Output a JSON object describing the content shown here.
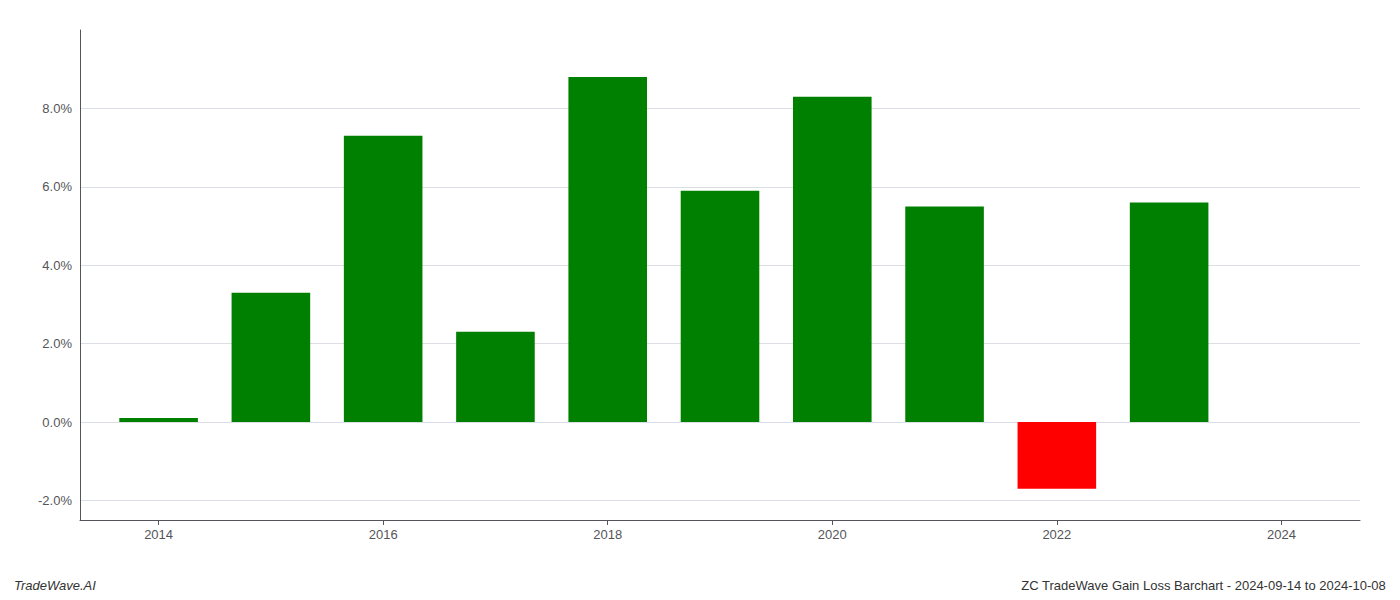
{
  "chart_data": {
    "type": "bar",
    "x": [
      2014,
      2015,
      2016,
      2017,
      2018,
      2019,
      2020,
      2021,
      2022,
      2023
    ],
    "values": [
      0.001,
      0.033,
      0.073,
      0.023,
      0.088,
      0.059,
      0.083,
      0.055,
      -0.017,
      0.056
    ],
    "colors": [
      "#008000",
      "#008000",
      "#008000",
      "#008000",
      "#008000",
      "#008000",
      "#008000",
      "#008000",
      "#ff0000",
      "#008000"
    ],
    "xlim": [
      2013.3,
      2024.7
    ],
    "xticks": [
      2014,
      2016,
      2018,
      2020,
      2022,
      2024
    ],
    "ylim": [
      -0.025,
      0.1
    ],
    "yticks": [
      {
        "value": -0.02,
        "label": "-2.0%"
      },
      {
        "value": 0.0,
        "label": "0.0%"
      },
      {
        "value": 0.02,
        "label": "2.0%"
      },
      {
        "value": 0.04,
        "label": "4.0%"
      },
      {
        "value": 0.06,
        "label": "6.0%"
      },
      {
        "value": 0.08,
        "label": "8.0%"
      }
    ],
    "grid": true,
    "annotations": [
      "TradeWave.AI",
      "ZC TradeWave Gain Loss Barchart - 2024-09-14 to 2024-10-08"
    ]
  }
}
